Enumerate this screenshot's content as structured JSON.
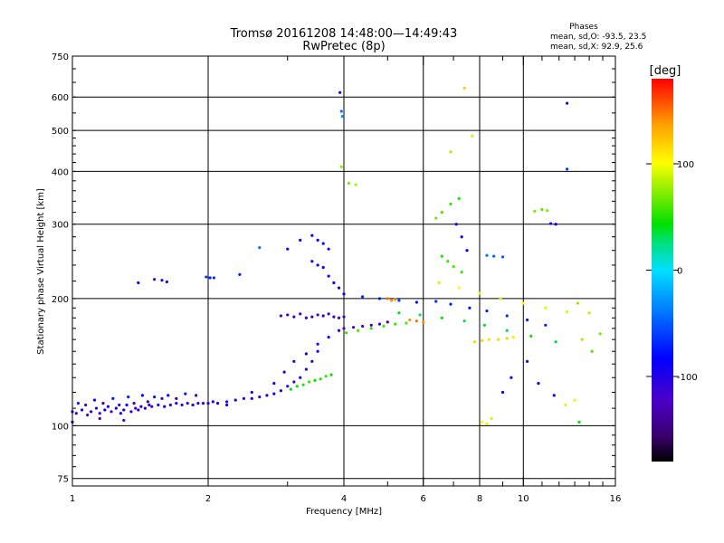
{
  "chart_data": {
    "type": "scatter",
    "title": "Tromsø 20161208 14:48:00—14:49:43",
    "subtitle": "RwPretec (8p)",
    "xlabel": "Frequency [MHz]",
    "ylabel": "Stationary phase Virtual Height [km]",
    "x_scale": "log",
    "y_scale": "log",
    "xlim": [
      1,
      16
    ],
    "ylim": [
      72,
      750
    ],
    "x_ticks": [
      {
        "value": 1,
        "label": "1"
      },
      {
        "value": 2,
        "label": "2"
      },
      {
        "value": 4,
        "label": "4"
      },
      {
        "value": 6,
        "label": "6"
      },
      {
        "value": 8,
        "label": "8"
      },
      {
        "value": 10,
        "label": "10"
      },
      {
        "value": 16,
        "label": "16"
      }
    ],
    "y_ticks": [
      {
        "value": 75,
        "label": "75"
      },
      {
        "value": 100,
        "label": "100"
      },
      {
        "value": 200,
        "label": "200"
      },
      {
        "value": 300,
        "label": "300"
      },
      {
        "value": 400,
        "label": "400"
      },
      {
        "value": 500,
        "label": "500"
      },
      {
        "value": 600,
        "label": "600"
      },
      {
        "value": 750,
        "label": "750"
      }
    ],
    "grid": true,
    "phases_legend": {
      "heading": "Phases",
      "line_o": "mean, sd,O: -93.5, 23.5",
      "line_x": "mean, sd,X:  92.9, 25.6"
    },
    "colorbar": {
      "label": "[deg]",
      "range": [
        -180,
        180
      ],
      "ticks": [
        {
          "value": 100,
          "label": "100"
        },
        {
          "value": 0,
          "label": "0"
        },
        {
          "value": -100,
          "label": "-100"
        }
      ]
    },
    "points": [
      [
        1.0,
        108,
        -100
      ],
      [
        1.02,
        107,
        -110
      ],
      [
        1.05,
        109,
        -95
      ],
      [
        1.08,
        106,
        -120
      ],
      [
        1.1,
        108,
        -105
      ],
      [
        1.13,
        110,
        -100
      ],
      [
        1.15,
        107,
        -115
      ],
      [
        1.18,
        109,
        -90
      ],
      [
        1.2,
        111,
        -100
      ],
      [
        1.22,
        108,
        -120
      ],
      [
        1.25,
        110,
        -95
      ],
      [
        1.28,
        107,
        -110
      ],
      [
        1.3,
        109,
        -100
      ],
      [
        1.32,
        112,
        -85
      ],
      [
        1.35,
        108,
        -105
      ],
      [
        1.38,
        110,
        -120
      ],
      [
        1.4,
        109,
        -100
      ],
      [
        1.42,
        111,
        -95
      ],
      [
        1.45,
        110,
        -110
      ],
      [
        1.48,
        112,
        -100
      ],
      [
        1.5,
        111,
        -120
      ],
      [
        1.55,
        112,
        -105
      ],
      [
        1.6,
        111,
        -95
      ],
      [
        1.65,
        112,
        -110
      ],
      [
        1.7,
        113,
        -100
      ],
      [
        1.75,
        112,
        -105
      ],
      [
        1.8,
        113,
        -115
      ],
      [
        1.85,
        112,
        -100
      ],
      [
        1.9,
        113,
        -95
      ],
      [
        1.95,
        113,
        -110
      ],
      [
        2.0,
        113,
        -100
      ],
      [
        2.05,
        114,
        -105
      ],
      [
        2.1,
        113,
        -95
      ],
      [
        2.2,
        114,
        -110
      ],
      [
        2.3,
        115,
        -100
      ],
      [
        2.4,
        116,
        -105
      ],
      [
        2.5,
        116,
        -95
      ],
      [
        2.6,
        117,
        -110
      ],
      [
        2.7,
        118,
        -100
      ],
      [
        2.8,
        119,
        -95
      ],
      [
        2.9,
        121,
        -105
      ],
      [
        3.0,
        124,
        -100
      ],
      [
        3.1,
        127,
        -110
      ],
      [
        3.2,
        130,
        -95
      ],
      [
        3.3,
        136,
        -100
      ],
      [
        3.4,
        142,
        -105
      ],
      [
        3.5,
        150,
        -95
      ],
      [
        1.03,
        113,
        -70
      ],
      [
        1.07,
        112,
        -130
      ],
      [
        1.12,
        115,
        -80
      ],
      [
        1.17,
        113,
        -140
      ],
      [
        1.23,
        116,
        -75
      ],
      [
        1.27,
        112,
        -130
      ],
      [
        1.33,
        117,
        -70
      ],
      [
        1.37,
        113,
        -135
      ],
      [
        1.43,
        118,
        -85
      ],
      [
        1.47,
        114,
        -140
      ],
      [
        1.52,
        117,
        -75
      ],
      [
        1.58,
        116,
        -130
      ],
      [
        1.63,
        118,
        -80
      ],
      [
        1.7,
        116,
        -140
      ],
      [
        1.78,
        119,
        -75
      ],
      [
        1.88,
        118,
        -130
      ],
      [
        1.0,
        102,
        -95
      ],
      [
        1.15,
        104,
        -125
      ],
      [
        1.3,
        103,
        -110
      ],
      [
        1.4,
        218,
        -95
      ],
      [
        1.52,
        222,
        -120
      ],
      [
        1.58,
        221,
        -100
      ],
      [
        1.62,
        219,
        -110
      ],
      [
        1.98,
        225,
        -60
      ],
      [
        2.02,
        224,
        -70
      ],
      [
        2.06,
        224,
        -65
      ],
      [
        2.35,
        228,
        -70
      ],
      [
        2.6,
        264,
        -40
      ],
      [
        2.9,
        182,
        -120
      ],
      [
        3.0,
        183,
        -135
      ],
      [
        3.1,
        181,
        -125
      ],
      [
        3.2,
        184,
        -130
      ],
      [
        3.3,
        180,
        -140
      ],
      [
        3.4,
        181,
        -120
      ],
      [
        3.5,
        183,
        -125
      ],
      [
        3.6,
        182,
        -140
      ],
      [
        3.7,
        184,
        -120
      ],
      [
        3.8,
        181,
        -130
      ],
      [
        3.9,
        180,
        -125
      ],
      [
        4.0,
        181,
        -130
      ],
      [
        4.0,
        170,
        -120
      ],
      [
        4.2,
        171,
        -130
      ],
      [
        4.4,
        172,
        -125
      ],
      [
        4.6,
        173,
        -135
      ],
      [
        4.8,
        174,
        -120
      ],
      [
        5.0,
        176,
        -130
      ],
      [
        3.0,
        262,
        -80
      ],
      [
        3.2,
        275,
        -90
      ],
      [
        3.4,
        282,
        -85
      ],
      [
        3.5,
        275,
        -95
      ],
      [
        3.6,
        270,
        -80
      ],
      [
        3.7,
        262,
        -90
      ],
      [
        3.4,
        245,
        -100
      ],
      [
        3.5,
        240,
        -85
      ],
      [
        3.6,
        237,
        -90
      ],
      [
        3.7,
        226,
        -100
      ],
      [
        3.8,
        218,
        -85
      ],
      [
        3.9,
        212,
        -90
      ],
      [
        4.0,
        205,
        -95
      ],
      [
        3.05,
        122,
        40
      ],
      [
        3.15,
        124,
        45
      ],
      [
        3.25,
        125,
        50
      ],
      [
        3.35,
        127,
        55
      ],
      [
        3.45,
        128,
        45
      ],
      [
        3.55,
        129,
        50
      ],
      [
        3.65,
        131,
        55
      ],
      [
        3.75,
        132,
        45
      ],
      [
        4.05,
        166,
        55
      ],
      [
        4.3,
        168,
        60
      ],
      [
        4.6,
        170,
        55
      ],
      [
        4.9,
        172,
        60
      ],
      [
        5.2,
        174,
        55
      ],
      [
        5.5,
        175,
        60
      ],
      [
        5.6,
        178,
        140
      ],
      [
        5.8,
        177,
        150
      ],
      [
        6.0,
        176,
        140
      ],
      [
        5.0,
        200,
        150
      ],
      [
        5.1,
        198,
        140
      ],
      [
        5.2,
        199,
        145
      ],
      [
        7.8,
        158,
        115
      ],
      [
        8.1,
        159,
        120
      ],
      [
        8.4,
        160,
        110
      ],
      [
        8.8,
        160,
        115
      ],
      [
        9.2,
        161,
        120
      ],
      [
        9.5,
        162,
        110
      ],
      [
        6.4,
        310,
        70
      ],
      [
        6.6,
        320,
        60
      ],
      [
        6.9,
        335,
        55
      ],
      [
        7.2,
        345,
        50
      ],
      [
        7.1,
        300,
        -80
      ],
      [
        7.3,
        280,
        -90
      ],
      [
        7.5,
        260,
        -85
      ],
      [
        6.6,
        252,
        50
      ],
      [
        6.8,
        245,
        55
      ],
      [
        7.0,
        238,
        60
      ],
      [
        7.3,
        231,
        55
      ],
      [
        8.3,
        253,
        -40
      ],
      [
        8.6,
        252,
        -45
      ],
      [
        9.0,
        251,
        -50
      ],
      [
        10.6,
        322,
        70
      ],
      [
        11.0,
        325,
        65
      ],
      [
        11.3,
        323,
        72
      ],
      [
        11.5,
        301,
        -80
      ],
      [
        11.8,
        300,
        -85
      ],
      [
        12.5,
        580,
        -105
      ],
      [
        12.5,
        405,
        -60
      ],
      [
        3.92,
        615,
        -110
      ],
      [
        3.95,
        555,
        -40
      ],
      [
        3.97,
        540,
        -30
      ],
      [
        3.95,
        410,
        75
      ],
      [
        4.1,
        375,
        70
      ],
      [
        4.25,
        372,
        80
      ],
      [
        7.4,
        630,
        120
      ],
      [
        6.9,
        445,
        80
      ],
      [
        7.7,
        485,
        90
      ],
      [
        4.4,
        202,
        -70
      ],
      [
        4.8,
        200,
        -80
      ],
      [
        5.3,
        198,
        -60
      ],
      [
        5.8,
        196,
        -75
      ],
      [
        6.4,
        197,
        -65
      ],
      [
        6.9,
        194,
        -70
      ],
      [
        7.6,
        190,
        -80
      ],
      [
        8.3,
        187,
        -75
      ],
      [
        9.2,
        182,
        -65
      ],
      [
        10.2,
        178,
        -75
      ],
      [
        11.2,
        173,
        -70
      ],
      [
        5.3,
        185,
        40
      ],
      [
        5.9,
        183,
        30
      ],
      [
        6.6,
        180,
        45
      ],
      [
        7.4,
        177,
        35
      ],
      [
        8.2,
        173,
        40
      ],
      [
        9.2,
        168,
        30
      ],
      [
        10.4,
        163,
        45
      ],
      [
        11.8,
        158,
        35
      ],
      [
        6.5,
        218,
        90
      ],
      [
        7.2,
        212,
        100
      ],
      [
        8.0,
        206,
        95
      ],
      [
        8.9,
        200,
        90
      ],
      [
        10.0,
        195,
        100
      ],
      [
        11.2,
        190,
        95
      ],
      [
        12.5,
        186,
        90
      ],
      [
        8.1,
        102,
        100
      ],
      [
        8.3,
        101,
        110
      ],
      [
        8.5,
        104,
        90
      ],
      [
        9.0,
        120,
        -90
      ],
      [
        9.4,
        130,
        -80
      ],
      [
        10.2,
        142,
        -100
      ],
      [
        10.8,
        126,
        -85
      ],
      [
        11.7,
        118,
        -90
      ],
      [
        12.4,
        112,
        110
      ],
      [
        13.0,
        115,
        95
      ],
      [
        13.3,
        102,
        40
      ],
      [
        2.2,
        112,
        -90
      ],
      [
        2.5,
        120,
        -100
      ],
      [
        2.8,
        126,
        -90
      ],
      [
        2.95,
        134,
        -95
      ],
      [
        3.1,
        142,
        -100
      ],
      [
        3.3,
        148,
        -90
      ],
      [
        3.5,
        156,
        -110
      ],
      [
        3.7,
        162,
        -95
      ],
      [
        3.9,
        168,
        -100
      ],
      [
        13.5,
        160,
        80
      ],
      [
        14.2,
        150,
        60
      ],
      [
        14.8,
        165,
        70
      ],
      [
        14.0,
        185,
        85
      ],
      [
        13.2,
        195,
        75
      ]
    ]
  }
}
